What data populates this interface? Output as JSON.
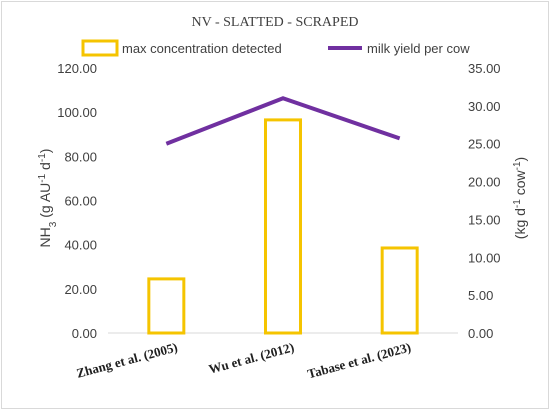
{
  "chart_data": {
    "type": "bar+line",
    "title": "NV -  SLATTED - SCRAPED",
    "categories": [
      "Zhang et al. (2005)",
      "Wu et al. (2012)",
      "Tabase et al. (2023)"
    ],
    "series": [
      {
        "name": "max concentration detected",
        "type": "bar",
        "axis": "left",
        "values": [
          24.5,
          96.5,
          38.5
        ]
      },
      {
        "name": "milk yield per cow",
        "type": "line",
        "axis": "right",
        "values": [
          25.0,
          31.0,
          25.7
        ]
      }
    ],
    "ylabel_left": {
      "base": "NH",
      "sub": "3",
      "rest1": " (g AU",
      "sup1": "-1",
      "rest2": " d",
      "sup2": "-1",
      "rest3": ")"
    },
    "ylabel_right": {
      "rest1": "(kg d",
      "sup1": "-1",
      "rest2": " cow",
      "sup2": "-1",
      "rest3": ")"
    },
    "ylim_left": [
      0,
      120
    ],
    "ylim_right": [
      0,
      35
    ],
    "yticks_left": [
      "0.00",
      "20.00",
      "40.00",
      "60.00",
      "80.00",
      "100.00",
      "120.00"
    ],
    "yticks_right": [
      "0.00",
      "5.00",
      "10.00",
      "15.00",
      "20.00",
      "25.00",
      "30.00",
      "35.00"
    ],
    "grid": false,
    "legend_position": "top",
    "colors": {
      "bar": "#f5c400",
      "line": "#7030a0",
      "text": "#404040",
      "axis": "#d9d9d9"
    }
  }
}
